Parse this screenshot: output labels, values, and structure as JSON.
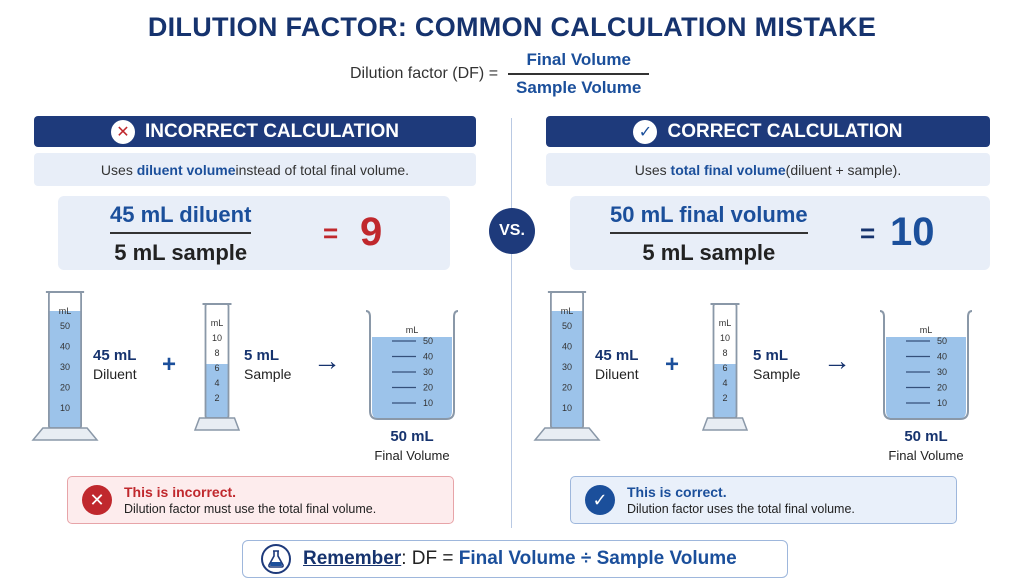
{
  "title": "DILUTION FACTOR: COMMON CALCULATION MISTAKE",
  "formula": {
    "lhs": "Dilution factor (DF) =",
    "numerator": "Final Volume",
    "denominator": "Sample Volume"
  },
  "vs_label": "VS.",
  "colors": {
    "navy": "#1e3a7b",
    "red": "#c0282d",
    "blue": "#1b4f9b",
    "liquid": "#9cc3ea"
  },
  "incorrect": {
    "header": "INCORRECT CALCULATION",
    "header_icon": "x-icon",
    "sub_pre": "Uses ",
    "sub_bold": "diluent volume",
    "sub_post": " instead of total final volume.",
    "eq_numerator": "45 mL diluent",
    "eq_denominator": "5 mL sample",
    "eq_sign": "=",
    "eq_result": "9",
    "cyl1": {
      "unit": "mL",
      "ticks": [
        "50",
        "40",
        "30",
        "20",
        "10"
      ],
      "value": "45 mL",
      "name": "Diluent",
      "fill": 0.9
    },
    "plus": "+",
    "cyl2": {
      "unit": "mL",
      "ticks": [
        "10",
        "8",
        "6",
        "4",
        "2"
      ],
      "value": "5 mL",
      "name": "Sample",
      "fill": 0.5
    },
    "arrow": "→",
    "beaker": {
      "unit": "mL",
      "ticks": [
        "50",
        "40",
        "30",
        "20",
        "10"
      ],
      "value": "50 mL",
      "name": "Final Volume",
      "fill": 0.82
    },
    "status_title": "This is incorrect.",
    "status_text": "Dilution factor must use the total final volume.",
    "status_icon": "x-circle-icon"
  },
  "correct": {
    "header": "CORRECT CALCULATION",
    "header_icon": "check-icon",
    "sub_pre": "Uses ",
    "sub_bold": "total final volume",
    "sub_post": " (diluent + sample).",
    "eq_numerator": "50 mL final volume",
    "eq_denominator": "5 mL sample",
    "eq_sign": "=",
    "eq_result": "10",
    "cyl1": {
      "unit": "mL",
      "ticks": [
        "50",
        "40",
        "30",
        "20",
        "10"
      ],
      "value": "45 mL",
      "name": "Diluent",
      "fill": 0.9
    },
    "plus": "+",
    "cyl2": {
      "unit": "mL",
      "ticks": [
        "10",
        "8",
        "6",
        "4",
        "2"
      ],
      "value": "5 mL",
      "name": "Sample",
      "fill": 0.5
    },
    "arrow": "→",
    "beaker": {
      "unit": "mL",
      "ticks": [
        "50",
        "40",
        "30",
        "20",
        "10"
      ],
      "value": "50 mL",
      "name": "Final Volume",
      "fill": 0.82
    },
    "status_title": "This is correct.",
    "status_text": "Dilution factor uses the total final volume.",
    "status_icon": "check-circle-icon"
  },
  "remember": {
    "label": "Remember",
    "colon": ":",
    "df": " DF = ",
    "formula": "Final Volume ÷ Sample Volume",
    "icon": "flask-icon"
  }
}
